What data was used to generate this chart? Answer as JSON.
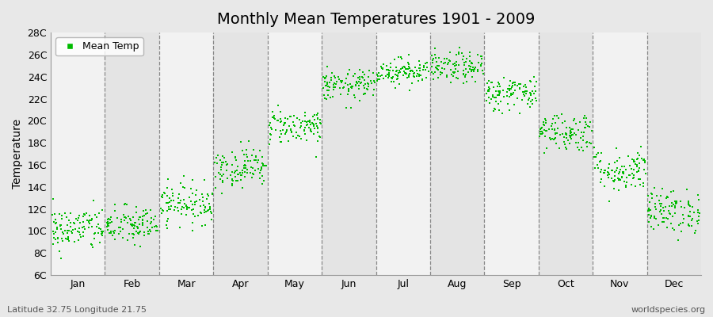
{
  "title": "Monthly Mean Temperatures 1901 - 2009",
  "ylabel": "Temperature",
  "bottom_left_text": "Latitude 32.75 Longitude 21.75",
  "bottom_right_text": "worldspecies.org",
  "legend_label": "Mean Temp",
  "ylim": [
    6,
    28
  ],
  "ytick_labels": [
    "6C",
    "8C",
    "10C",
    "12C",
    "14C",
    "16C",
    "18C",
    "20C",
    "22C",
    "24C",
    "26C",
    "28C"
  ],
  "ytick_values": [
    6,
    8,
    10,
    12,
    14,
    16,
    18,
    20,
    22,
    24,
    26,
    28
  ],
  "month_names": [
    "Jan",
    "Feb",
    "Mar",
    "Apr",
    "May",
    "Jun",
    "Jul",
    "Aug",
    "Sep",
    "Oct",
    "Nov",
    "Dec"
  ],
  "marker_color": "#00BB00",
  "bg_color": "#E8E8E8",
  "strip_color_light": "#F2F2F2",
  "strip_color_dark": "#E4E4E4",
  "title_fontsize": 14,
  "axis_label_fontsize": 10,
  "tick_fontsize": 9,
  "monthly_means": [
    10.2,
    10.5,
    12.5,
    15.8,
    19.5,
    23.2,
    24.5,
    24.8,
    22.5,
    19.0,
    15.5,
    11.8
  ],
  "monthly_stds": [
    1.0,
    0.9,
    0.9,
    0.9,
    0.8,
    0.7,
    0.6,
    0.7,
    0.8,
    0.9,
    1.0,
    1.0
  ],
  "n_years": 109,
  "seed": 42,
  "figwidth": 9.0,
  "figheight": 4.0,
  "dpi": 100
}
